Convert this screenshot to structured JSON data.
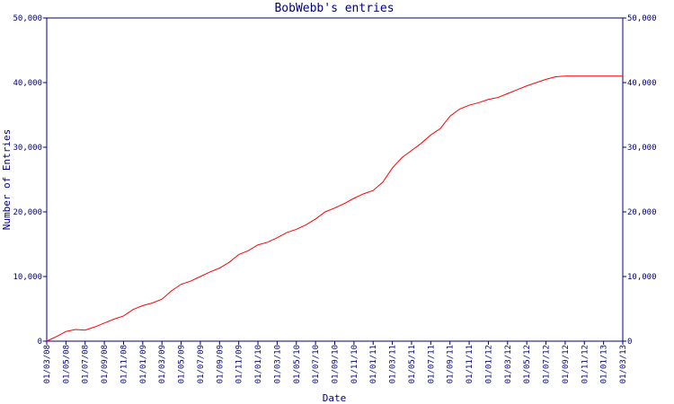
{
  "chart_data": {
    "type": "line",
    "title": "BobWebb's entries",
    "x_label": "Date",
    "y_label": "Number of Entries",
    "x": [
      "01/03/08",
      "01/04/08",
      "01/05/08",
      "01/06/08",
      "01/07/08",
      "01/08/08",
      "01/09/08",
      "01/10/08",
      "01/11/08",
      "01/12/08",
      "01/01/09",
      "01/02/09",
      "01/03/09",
      "01/04/09",
      "01/05/09",
      "01/06/09",
      "01/07/09",
      "01/08/09",
      "01/09/09",
      "01/10/09",
      "01/11/09",
      "01/12/09",
      "01/01/10",
      "01/02/10",
      "01/03/10",
      "01/04/10",
      "01/05/10",
      "01/06/10",
      "01/07/10",
      "01/08/10",
      "01/09/10",
      "01/10/10",
      "01/11/10",
      "01/12/10",
      "01/01/11",
      "01/02/11",
      "01/03/11",
      "01/04/11",
      "01/05/11",
      "01/06/11",
      "01/07/11",
      "01/08/11",
      "01/09/11",
      "01/10/11",
      "01/11/11",
      "01/12/11",
      "01/01/12",
      "01/02/12",
      "01/03/12",
      "01/04/12",
      "01/05/12",
      "01/06/12",
      "01/07/12",
      "01/08/12",
      "01/09/12",
      "01/10/12",
      "01/11/12",
      "01/12/12",
      "01/01/13",
      "01/02/13",
      "01/03/13"
    ],
    "series": [
      {
        "color": "#ff0000",
        "values": [
          0,
          700,
          1500,
          1800,
          1700,
          2200,
          2800,
          3400,
          3900,
          4900,
          5500,
          5900,
          6500,
          7800,
          8800,
          9300,
          10000,
          10700,
          11300,
          12200,
          13400,
          14000,
          14900,
          15300,
          16000,
          16800,
          17300,
          18000,
          18900,
          20000,
          20600,
          21300,
          22100,
          22800,
          23300,
          24600,
          26800,
          28400,
          29500,
          30600,
          31900,
          32900,
          34800,
          35900,
          36500,
          36900,
          37400,
          37700,
          38300,
          38900,
          39500,
          40000,
          40500,
          40900,
          41000,
          41000,
          41000,
          41000,
          41000,
          41000,
          41000
        ]
      }
    ],
    "xlim": [
      "01/03/08",
      "01/03/13"
    ],
    "xticks": [
      "01/03/08",
      "01/05/08",
      "01/07/08",
      "01/09/08",
      "01/11/08",
      "01/01/09",
      "01/03/09",
      "01/05/09",
      "01/07/09",
      "01/09/09",
      "01/11/09",
      "01/01/10",
      "01/03/10",
      "01/05/10",
      "01/07/10",
      "01/09/10",
      "01/11/10",
      "01/01/11",
      "01/03/11",
      "01/05/11",
      "01/07/11",
      "01/09/11",
      "01/11/11",
      "01/01/12",
      "01/03/12",
      "01/05/12",
      "01/07/12",
      "01/09/12",
      "01/11/12",
      "01/01/13",
      "01/03/13"
    ],
    "ylim": [
      0,
      50000
    ],
    "yticks": [
      0,
      {
        "value": 10000,
        "label": "10,000"
      },
      {
        "value": 20000,
        "label": "20,000"
      },
      {
        "value": 30000,
        "label": "30,000"
      },
      {
        "value": 40000,
        "label": "40,000"
      },
      {
        "value": 50000,
        "label": "50,000"
      }
    ],
    "axis_color": "#000080"
  }
}
